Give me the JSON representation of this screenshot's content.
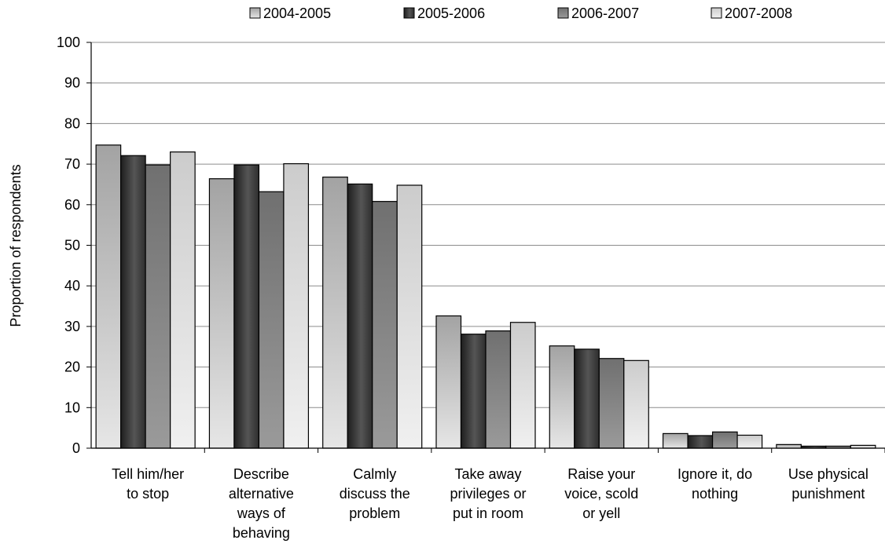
{
  "chart_data": {
    "type": "bar",
    "title": "",
    "xlabel": "",
    "ylabel": "Proportion of respondents",
    "ylim": [
      0,
      100
    ],
    "yticks": [
      0,
      10,
      20,
      30,
      40,
      50,
      60,
      70,
      80,
      90,
      100
    ],
    "grid": true,
    "legend_position": "top",
    "categories": [
      [
        "Tell him/her",
        "to stop"
      ],
      [
        "Describe",
        "alternative",
        "ways of",
        "behaving"
      ],
      [
        "Calmly",
        "discuss the",
        "problem"
      ],
      [
        "Take away",
        "privileges or",
        "put in room"
      ],
      [
        "Raise your",
        "voice, scold",
        "or yell"
      ],
      [
        "Ignore it, do",
        "nothing"
      ],
      [
        "Use physical",
        "punishment"
      ]
    ],
    "series": [
      {
        "name": "2004-2005",
        "values": [
          74.7,
          66.4,
          66.8,
          32.6,
          25.2,
          3.6,
          0.9
        ]
      },
      {
        "name": "2005-2006",
        "values": [
          72.1,
          69.8,
          65.1,
          28.1,
          24.4,
          3.1,
          0.5
        ]
      },
      {
        "name": "2006-2007",
        "values": [
          69.8,
          63.2,
          60.8,
          28.9,
          22.1,
          4.0,
          0.5
        ]
      },
      {
        "name": "2007-2008",
        "values": [
          73.0,
          70.1,
          64.8,
          31.0,
          21.6,
          3.2,
          0.7
        ]
      }
    ]
  },
  "colors": {
    "background": "#ffffff",
    "gridline": "#8c8c8c",
    "axis": "#000000",
    "bar_stroke": "#000000",
    "series_gradients": [
      [
        "#a3a3a3",
        "#e6e6e6"
      ],
      [
        "#2e2e2e",
        "#8c8c8c"
      ],
      [
        "#707070",
        "#9a9a9a"
      ],
      [
        "#cccccc",
        "#f0f0f0"
      ]
    ]
  }
}
